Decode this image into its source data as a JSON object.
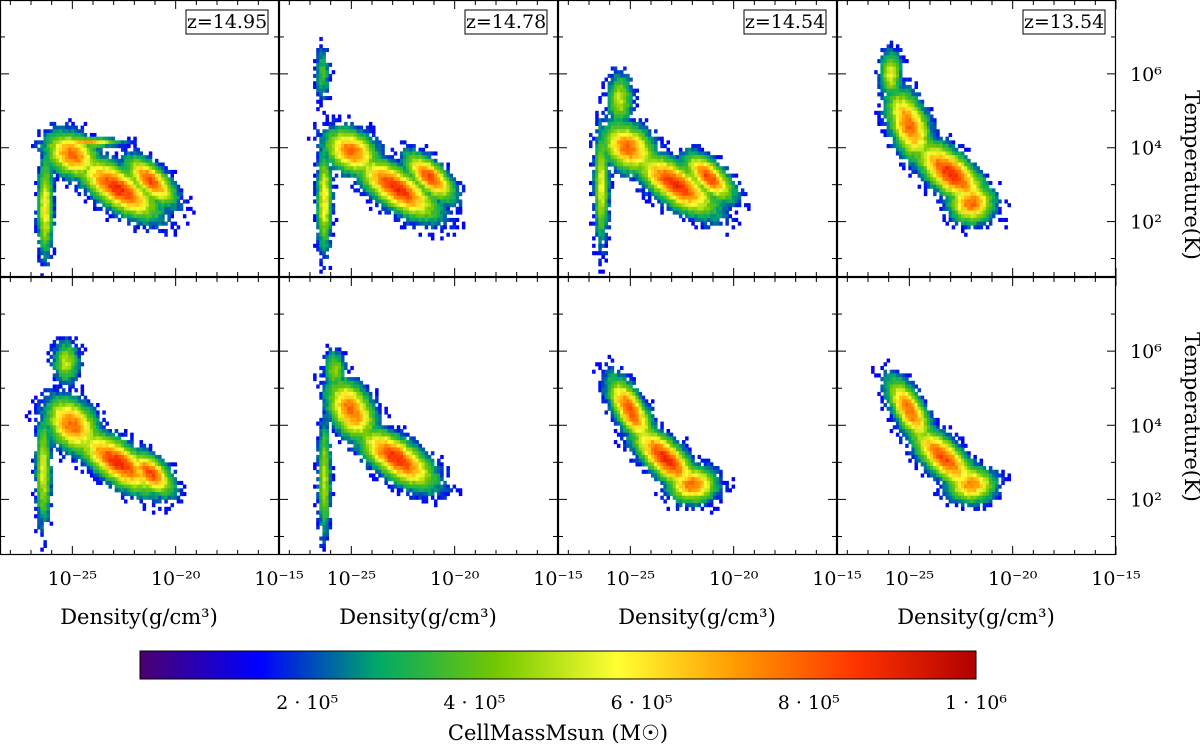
{
  "chart_data": {
    "type": "heatmap",
    "description_kind": "phase-diagram grid",
    "rows": 2,
    "cols": 4,
    "xaxis": {
      "label": "Density(g/cm³)",
      "scale": "log",
      "range_log10": [
        -28.5,
        -15
      ],
      "ticks": [
        {
          "exp": -25,
          "text": "10⁻²⁵"
        },
        {
          "exp": -20,
          "text": "10⁻²⁰"
        },
        {
          "exp": -15,
          "text": "10⁻¹⁵"
        }
      ]
    },
    "yaxis": {
      "label": "Temperature(K)",
      "scale": "log",
      "range_log10": [
        0.5,
        8
      ],
      "ticks": [
        {
          "exp": 2,
          "text": "10²"
        },
        {
          "exp": 4,
          "text": "10⁴"
        },
        {
          "exp": 6,
          "text": "10⁶"
        }
      ]
    },
    "panels": [
      {
        "row": 0,
        "col": 0,
        "z_label": "z=14.95",
        "blobs": [
          [
            -25.0,
            3.8,
            1.2,
            0.55,
            0.75,
            -0.15
          ],
          [
            -22.8,
            2.9,
            1.8,
            0.55,
            0.85,
            -0.3
          ],
          [
            -26.3,
            2.4,
            0.35,
            1.3,
            0.55,
            0
          ],
          [
            -24.4,
            4.15,
            1.6,
            0.12,
            0.65,
            0
          ],
          [
            -21.2,
            3.1,
            1.1,
            0.45,
            0.8,
            -0.35
          ]
        ]
      },
      {
        "row": 0,
        "col": 1,
        "z_label": "z=14.78",
        "blobs": [
          [
            -25.0,
            3.9,
            1.2,
            0.55,
            0.75,
            -0.15
          ],
          [
            -22.8,
            2.9,
            1.8,
            0.55,
            0.85,
            -0.3
          ],
          [
            -26.3,
            2.6,
            0.35,
            1.3,
            0.55,
            0
          ],
          [
            -26.4,
            6.0,
            0.35,
            0.7,
            0.3,
            0
          ],
          [
            -21.2,
            3.2,
            1.1,
            0.45,
            0.8,
            -0.35
          ]
        ]
      },
      {
        "row": 0,
        "col": 2,
        "z_label": "z=14.54",
        "blobs": [
          [
            -25.1,
            4.0,
            1.2,
            0.6,
            0.75,
            -0.15
          ],
          [
            -22.8,
            3.0,
            1.8,
            0.55,
            0.85,
            -0.3
          ],
          [
            -26.4,
            3.0,
            0.35,
            1.5,
            0.5,
            0
          ],
          [
            -25.5,
            5.3,
            0.6,
            0.7,
            0.45,
            0
          ],
          [
            -21.2,
            3.2,
            1.1,
            0.45,
            0.8,
            -0.35
          ]
        ]
      },
      {
        "row": 0,
        "col": 3,
        "z_label": "z=13.54",
        "blobs": [
          [
            -25.0,
            4.6,
            1.0,
            0.8,
            0.75,
            -0.45
          ],
          [
            -23.0,
            3.3,
            1.6,
            0.6,
            0.85,
            -0.35
          ],
          [
            -25.9,
            6.0,
            0.5,
            0.6,
            0.5,
            0
          ],
          [
            -22.0,
            2.5,
            1.0,
            0.5,
            0.75,
            0
          ]
        ]
      },
      {
        "row": 1,
        "col": 0,
        "z_label": "",
        "blobs": [
          [
            -25.0,
            4.0,
            1.2,
            0.65,
            0.75,
            -0.2
          ],
          [
            -22.8,
            3.0,
            1.8,
            0.55,
            0.85,
            -0.3
          ],
          [
            -26.4,
            2.8,
            0.35,
            1.4,
            0.5,
            0
          ],
          [
            -25.3,
            5.7,
            0.6,
            0.55,
            0.45,
            0
          ],
          [
            -21.2,
            2.7,
            1.0,
            0.45,
            0.8,
            -0.3
          ]
        ]
      },
      {
        "row": 1,
        "col": 1,
        "z_label": "",
        "blobs": [
          [
            -25.0,
            4.4,
            1.1,
            0.7,
            0.75,
            -0.3
          ],
          [
            -22.8,
            3.1,
            1.7,
            0.55,
            0.85,
            -0.3
          ],
          [
            -26.3,
            2.6,
            0.3,
            1.5,
            0.45,
            0
          ],
          [
            -25.8,
            5.5,
            0.5,
            0.5,
            0.4,
            0
          ]
        ]
      },
      {
        "row": 1,
        "col": 2,
        "z_label": "",
        "blobs": [
          [
            -25.0,
            4.4,
            1.0,
            0.6,
            0.8,
            -0.55
          ],
          [
            -23.3,
            3.1,
            1.5,
            0.55,
            0.85,
            -0.4
          ],
          [
            -22.0,
            2.4,
            1.1,
            0.45,
            0.75,
            0
          ]
        ]
      },
      {
        "row": 1,
        "col": 3,
        "z_label": "",
        "blobs": [
          [
            -25.0,
            4.4,
            1.0,
            0.6,
            0.75,
            -0.55
          ],
          [
            -23.3,
            3.1,
            1.5,
            0.55,
            0.8,
            -0.4
          ],
          [
            -22.0,
            2.4,
            1.1,
            0.45,
            0.7,
            0
          ]
        ]
      }
    ],
    "colorbar": {
      "label": "CellMassMsun (M☉)",
      "range": [
        0,
        1000000
      ],
      "ticks": [
        {
          "value": 200000,
          "text": "2 · 10⁵"
        },
        {
          "value": 400000,
          "text": "4 · 10⁵"
        },
        {
          "value": 600000,
          "text": "6 · 10⁵"
        },
        {
          "value": 800000,
          "text": "8 · 10⁵"
        },
        {
          "value": 1000000,
          "text": "1 · 10⁶"
        }
      ],
      "colormap": [
        "#4b0070",
        "#0000ff",
        "#00aa66",
        "#76c800",
        "#ffff33",
        "#ff9900",
        "#ff3300",
        "#b00000"
      ]
    }
  }
}
